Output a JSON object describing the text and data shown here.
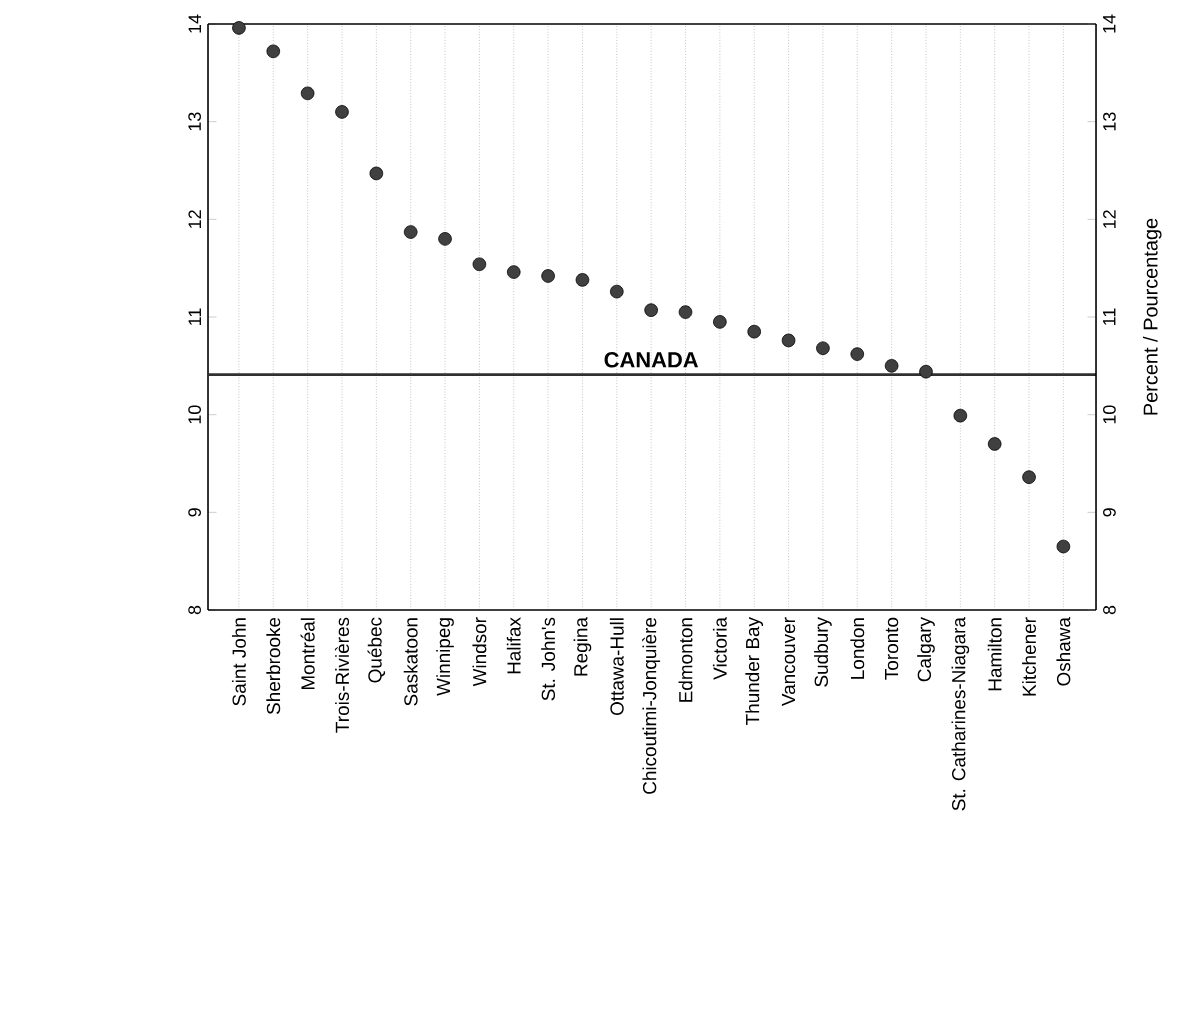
{
  "chart_data": {
    "type": "scatter",
    "ylabel": "Percent / Pourcentage",
    "categories": [
      "Saint John",
      "Sherbrooke",
      "Montréal",
      "Trois-Rivières",
      "Québec",
      "Saskatoon",
      "Winnipeg",
      "Windsor",
      "Halifax",
      "St. John's",
      "Regina",
      "Ottawa-Hull",
      "Chicoutimi-Jonquière",
      "Edmonton",
      "Victoria",
      "Thunder Bay",
      "Vancouver",
      "Sudbury",
      "London",
      "Toronto",
      "Calgary",
      "St. Catharines-Niagara",
      "Hamilton",
      "Kitchener",
      "Oshawa"
    ],
    "values": [
      13.96,
      13.72,
      13.29,
      13.1,
      12.47,
      11.87,
      11.8,
      11.54,
      11.46,
      11.42,
      11.38,
      11.26,
      11.07,
      11.05,
      10.95,
      10.85,
      10.76,
      10.68,
      10.62,
      10.5,
      10.44,
      9.99,
      9.7,
      9.36,
      8.65
    ],
    "color": "#404040",
    "marker": "circle",
    "grid": "x",
    "ylim": [
      8,
      14
    ],
    "yticks": [
      8,
      9,
      10,
      11,
      12,
      13,
      14
    ],
    "y2lim": [
      8,
      14
    ],
    "y2ticks": [
      8,
      9,
      10,
      11,
      12,
      13,
      14
    ],
    "ref_lines": [
      {
        "axis": "y",
        "value": 10.41,
        "label": "CANADA",
        "color": "#303030"
      }
    ]
  }
}
